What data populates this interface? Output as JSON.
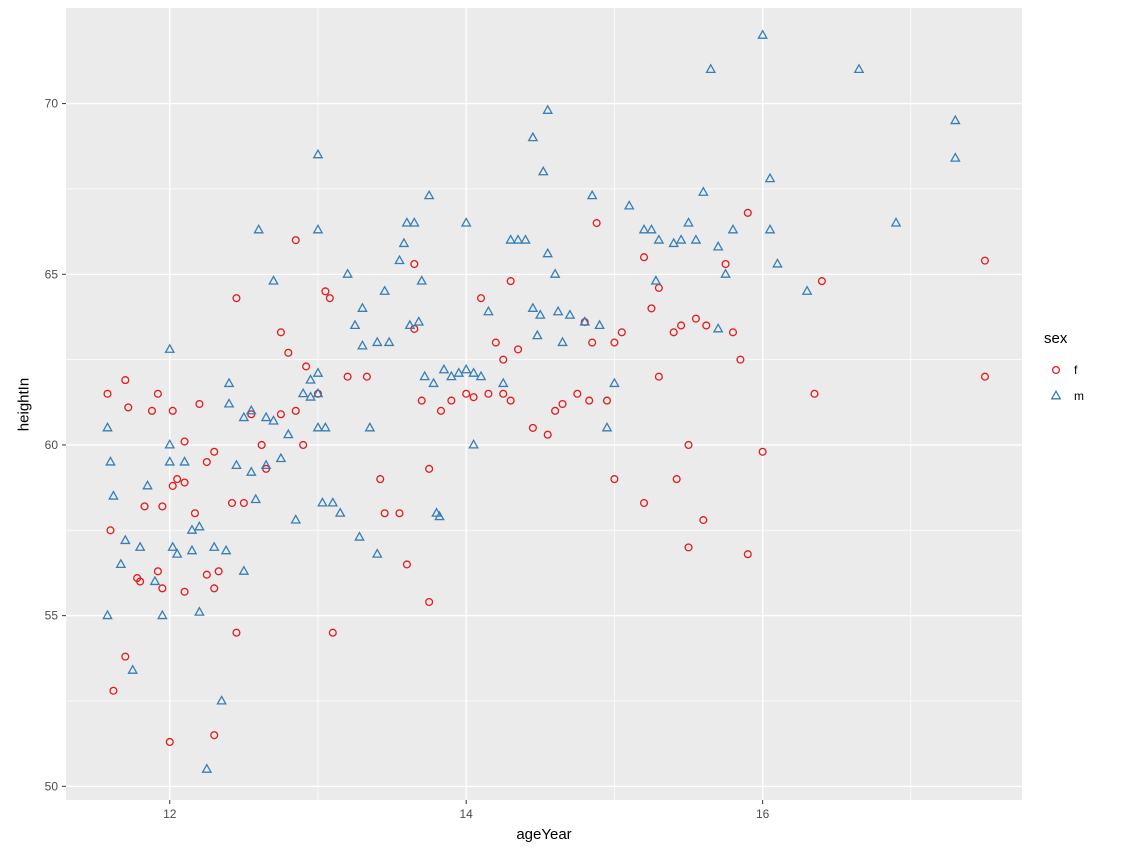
{
  "chart_data": {
    "type": "scatter",
    "title": "",
    "xlabel": "ageYear",
    "ylabel": "heightIn",
    "xlim": [
      11.3,
      17.75
    ],
    "ylim": [
      49.6,
      72.8
    ],
    "x_major_ticks": [
      12,
      14,
      16
    ],
    "x_minor_ticks": [
      13,
      15,
      17
    ],
    "y_major_ticks": [
      50,
      55,
      60,
      65,
      70
    ],
    "y_minor_ticks": [
      52.5,
      57.5,
      62.5,
      67.5
    ],
    "grid": true,
    "legend_position": "right",
    "panel_bg": "#EBEBEB",
    "grid_color": "#FFFFFF",
    "axis_text_color": "#4D4D4D",
    "tick_mark_color": "#333333",
    "legend": {
      "title": "sex",
      "items": [
        {
          "label": "f",
          "shape": "circle",
          "color": "#E41A1C"
        },
        {
          "label": "m",
          "shape": "triangle",
          "color": "#377EB8"
        }
      ]
    },
    "series": [
      {
        "name": "f",
        "shape": "circle",
        "color": "#E41A1C",
        "points": [
          [
            11.58,
            61.5
          ],
          [
            11.6,
            57.5
          ],
          [
            11.62,
            52.8
          ],
          [
            11.7,
            61.9
          ],
          [
            11.7,
            53.8
          ],
          [
            11.72,
            61.1
          ],
          [
            11.78,
            56.1
          ],
          [
            11.8,
            56.0
          ],
          [
            11.83,
            58.2
          ],
          [
            11.88,
            61.0
          ],
          [
            11.92,
            56.3
          ],
          [
            11.92,
            61.5
          ],
          [
            11.95,
            58.2
          ],
          [
            11.95,
            55.8
          ],
          [
            12.0,
            51.3
          ],
          [
            12.02,
            61.0
          ],
          [
            12.02,
            58.8
          ],
          [
            12.05,
            59.0
          ],
          [
            12.1,
            60.1
          ],
          [
            12.1,
            58.9
          ],
          [
            12.1,
            55.7
          ],
          [
            12.17,
            58.0
          ],
          [
            12.2,
            61.2
          ],
          [
            12.25,
            59.5
          ],
          [
            12.25,
            56.2
          ],
          [
            12.3,
            59.8
          ],
          [
            12.3,
            55.8
          ],
          [
            12.3,
            51.5
          ],
          [
            12.33,
            56.3
          ],
          [
            12.42,
            58.3
          ],
          [
            12.45,
            64.3
          ],
          [
            12.45,
            54.5
          ],
          [
            12.5,
            58.3
          ],
          [
            12.55,
            60.9
          ],
          [
            12.62,
            60.0
          ],
          [
            12.65,
            59.3
          ],
          [
            12.75,
            63.3
          ],
          [
            12.75,
            60.9
          ],
          [
            12.8,
            62.7
          ],
          [
            12.85,
            66.0
          ],
          [
            12.85,
            61.0
          ],
          [
            12.9,
            60.0
          ],
          [
            12.92,
            62.3
          ],
          [
            13.0,
            61.5
          ],
          [
            13.05,
            64.5
          ],
          [
            13.08,
            64.3
          ],
          [
            13.1,
            54.5
          ],
          [
            13.2,
            62.0
          ],
          [
            13.33,
            62.0
          ],
          [
            13.42,
            59.0
          ],
          [
            13.45,
            58.0
          ],
          [
            13.55,
            58.0
          ],
          [
            13.6,
            56.5
          ],
          [
            13.65,
            65.3
          ],
          [
            13.65,
            63.4
          ],
          [
            13.7,
            61.3
          ],
          [
            13.75,
            59.3
          ],
          [
            13.75,
            55.4
          ],
          [
            13.83,
            61.0
          ],
          [
            13.9,
            61.3
          ],
          [
            14.0,
            61.5
          ],
          [
            14.05,
            61.4
          ],
          [
            14.1,
            64.3
          ],
          [
            14.15,
            61.5
          ],
          [
            14.2,
            63.0
          ],
          [
            14.25,
            62.5
          ],
          [
            14.25,
            61.5
          ],
          [
            14.3,
            64.8
          ],
          [
            14.3,
            61.3
          ],
          [
            14.35,
            62.8
          ],
          [
            14.45,
            60.5
          ],
          [
            14.55,
            60.3
          ],
          [
            14.6,
            61.0
          ],
          [
            14.65,
            61.2
          ],
          [
            14.75,
            61.5
          ],
          [
            14.8,
            63.6
          ],
          [
            14.83,
            61.3
          ],
          [
            14.85,
            63.0
          ],
          [
            14.88,
            66.5
          ],
          [
            14.95,
            61.3
          ],
          [
            15.0,
            59.0
          ],
          [
            15.0,
            63.0
          ],
          [
            15.05,
            63.3
          ],
          [
            15.2,
            58.3
          ],
          [
            15.2,
            65.5
          ],
          [
            15.25,
            64.0
          ],
          [
            15.3,
            64.6
          ],
          [
            15.3,
            62.0
          ],
          [
            15.4,
            63.3
          ],
          [
            15.42,
            59.0
          ],
          [
            15.45,
            63.5
          ],
          [
            15.5,
            57.0
          ],
          [
            15.5,
            60.0
          ],
          [
            15.55,
            63.7
          ],
          [
            15.6,
            57.8
          ],
          [
            15.62,
            63.5
          ],
          [
            15.75,
            65.3
          ],
          [
            15.8,
            63.3
          ],
          [
            15.85,
            62.5
          ],
          [
            15.9,
            66.8
          ],
          [
            15.9,
            56.8
          ],
          [
            16.0,
            59.8
          ],
          [
            16.35,
            61.5
          ],
          [
            16.4,
            64.8
          ],
          [
            17.5,
            65.4
          ],
          [
            17.5,
            62.0
          ]
        ]
      },
      {
        "name": "m",
        "shape": "triangle",
        "color": "#377EB8",
        "points": [
          [
            11.58,
            60.5
          ],
          [
            11.58,
            55.0
          ],
          [
            11.6,
            59.5
          ],
          [
            11.62,
            58.5
          ],
          [
            11.67,
            56.5
          ],
          [
            11.7,
            57.2
          ],
          [
            11.75,
            53.4
          ],
          [
            11.8,
            57.0
          ],
          [
            11.85,
            58.8
          ],
          [
            11.9,
            56.0
          ],
          [
            11.95,
            55.0
          ],
          [
            12.0,
            62.8
          ],
          [
            12.0,
            60.0
          ],
          [
            12.0,
            59.5
          ],
          [
            12.02,
            57.0
          ],
          [
            12.05,
            56.8
          ],
          [
            12.1,
            59.5
          ],
          [
            12.15,
            57.5
          ],
          [
            12.15,
            56.9
          ],
          [
            12.2,
            57.6
          ],
          [
            12.2,
            55.1
          ],
          [
            12.25,
            50.5
          ],
          [
            12.3,
            57.0
          ],
          [
            12.35,
            52.5
          ],
          [
            12.38,
            56.9
          ],
          [
            12.4,
            61.8
          ],
          [
            12.4,
            61.2
          ],
          [
            12.45,
            59.4
          ],
          [
            12.5,
            56.3
          ],
          [
            12.5,
            60.8
          ],
          [
            12.55,
            61.0
          ],
          [
            12.55,
            59.2
          ],
          [
            12.58,
            58.4
          ],
          [
            12.6,
            66.3
          ],
          [
            12.65,
            60.8
          ],
          [
            12.65,
            59.4
          ],
          [
            12.7,
            64.8
          ],
          [
            12.7,
            60.7
          ],
          [
            12.75,
            59.6
          ],
          [
            12.8,
            60.3
          ],
          [
            12.85,
            57.8
          ],
          [
            12.9,
            61.5
          ],
          [
            12.95,
            61.9
          ],
          [
            12.95,
            61.4
          ],
          [
            13.0,
            66.3
          ],
          [
            13.0,
            68.5
          ],
          [
            13.0,
            62.1
          ],
          [
            13.0,
            61.5
          ],
          [
            13.0,
            60.5
          ],
          [
            13.03,
            58.3
          ],
          [
            13.05,
            60.5
          ],
          [
            13.1,
            58.3
          ],
          [
            13.15,
            58.0
          ],
          [
            13.2,
            65.0
          ],
          [
            13.25,
            63.5
          ],
          [
            13.28,
            57.3
          ],
          [
            13.3,
            64.0
          ],
          [
            13.3,
            62.9
          ],
          [
            13.35,
            60.5
          ],
          [
            13.4,
            63.0
          ],
          [
            13.4,
            56.8
          ],
          [
            13.45,
            64.5
          ],
          [
            13.48,
            63.0
          ],
          [
            13.55,
            65.4
          ],
          [
            13.58,
            65.9
          ],
          [
            13.6,
            66.5
          ],
          [
            13.62,
            63.5
          ],
          [
            13.65,
            66.5
          ],
          [
            13.68,
            63.6
          ],
          [
            13.7,
            64.8
          ],
          [
            13.72,
            62.0
          ],
          [
            13.75,
            67.3
          ],
          [
            13.78,
            61.8
          ],
          [
            13.8,
            58.0
          ],
          [
            13.82,
            57.9
          ],
          [
            13.85,
            62.2
          ],
          [
            13.9,
            62.0
          ],
          [
            13.95,
            62.1
          ],
          [
            14.0,
            66.5
          ],
          [
            14.0,
            62.2
          ],
          [
            14.05,
            62.1
          ],
          [
            14.05,
            60.0
          ],
          [
            14.1,
            62.0
          ],
          [
            14.15,
            63.9
          ],
          [
            14.25,
            61.8
          ],
          [
            14.3,
            66.0
          ],
          [
            14.35,
            66.0
          ],
          [
            14.4,
            66.0
          ],
          [
            14.45,
            64.0
          ],
          [
            14.45,
            69.0
          ],
          [
            14.48,
            63.2
          ],
          [
            14.5,
            63.8
          ],
          [
            14.52,
            68.0
          ],
          [
            14.55,
            65.6
          ],
          [
            14.55,
            69.8
          ],
          [
            14.6,
            65.0
          ],
          [
            14.62,
            63.9
          ],
          [
            14.65,
            63.0
          ],
          [
            14.7,
            63.8
          ],
          [
            14.8,
            63.6
          ],
          [
            14.85,
            67.3
          ],
          [
            14.9,
            63.5
          ],
          [
            14.95,
            60.5
          ],
          [
            15.0,
            61.8
          ],
          [
            15.1,
            67.0
          ],
          [
            15.2,
            66.3
          ],
          [
            15.25,
            66.3
          ],
          [
            15.28,
            64.8
          ],
          [
            15.3,
            66.0
          ],
          [
            15.4,
            65.9
          ],
          [
            15.45,
            66.0
          ],
          [
            15.5,
            66.5
          ],
          [
            15.55,
            66.0
          ],
          [
            15.6,
            67.4
          ],
          [
            15.65,
            71.0
          ],
          [
            15.7,
            65.8
          ],
          [
            15.7,
            63.4
          ],
          [
            15.75,
            65.0
          ],
          [
            15.8,
            66.3
          ],
          [
            16.0,
            72.0
          ],
          [
            16.05,
            67.8
          ],
          [
            16.05,
            66.3
          ],
          [
            16.1,
            65.3
          ],
          [
            16.3,
            64.5
          ],
          [
            16.65,
            71.0
          ],
          [
            16.9,
            66.5
          ],
          [
            17.3,
            69.5
          ],
          [
            17.3,
            68.4
          ]
        ]
      }
    ]
  }
}
